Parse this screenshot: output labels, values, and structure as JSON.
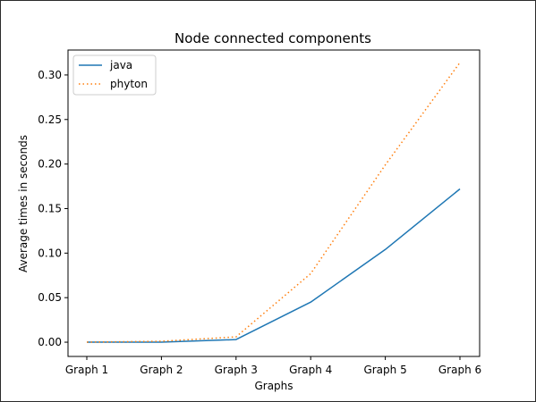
{
  "colors": {
    "java": "#1f77b4",
    "phyton": "#ff7f0e"
  },
  "chart_data": {
    "type": "line",
    "title": "Node connected components",
    "xlabel": "Graphs",
    "ylabel": "Average times in seconds",
    "categories": [
      "Graph 1",
      "Graph 2",
      "Graph 3",
      "Graph 4",
      "Graph 5",
      "Graph 6"
    ],
    "y_ticks": [
      "0.00",
      "0.05",
      "0.10",
      "0.15",
      "0.20",
      "0.25",
      "0.30"
    ],
    "ylim": [
      -0.016,
      0.328
    ],
    "grid": false,
    "legend_position": "top-left",
    "series": [
      {
        "name": "java",
        "line_style": "solid",
        "values": [
          0.0,
          0.0,
          0.003,
          0.045,
          0.104,
          0.172
        ]
      },
      {
        "name": "phyton",
        "line_style": "dotted",
        "values": [
          0.0,
          0.001,
          0.006,
          0.077,
          0.199,
          0.314
        ]
      }
    ]
  }
}
